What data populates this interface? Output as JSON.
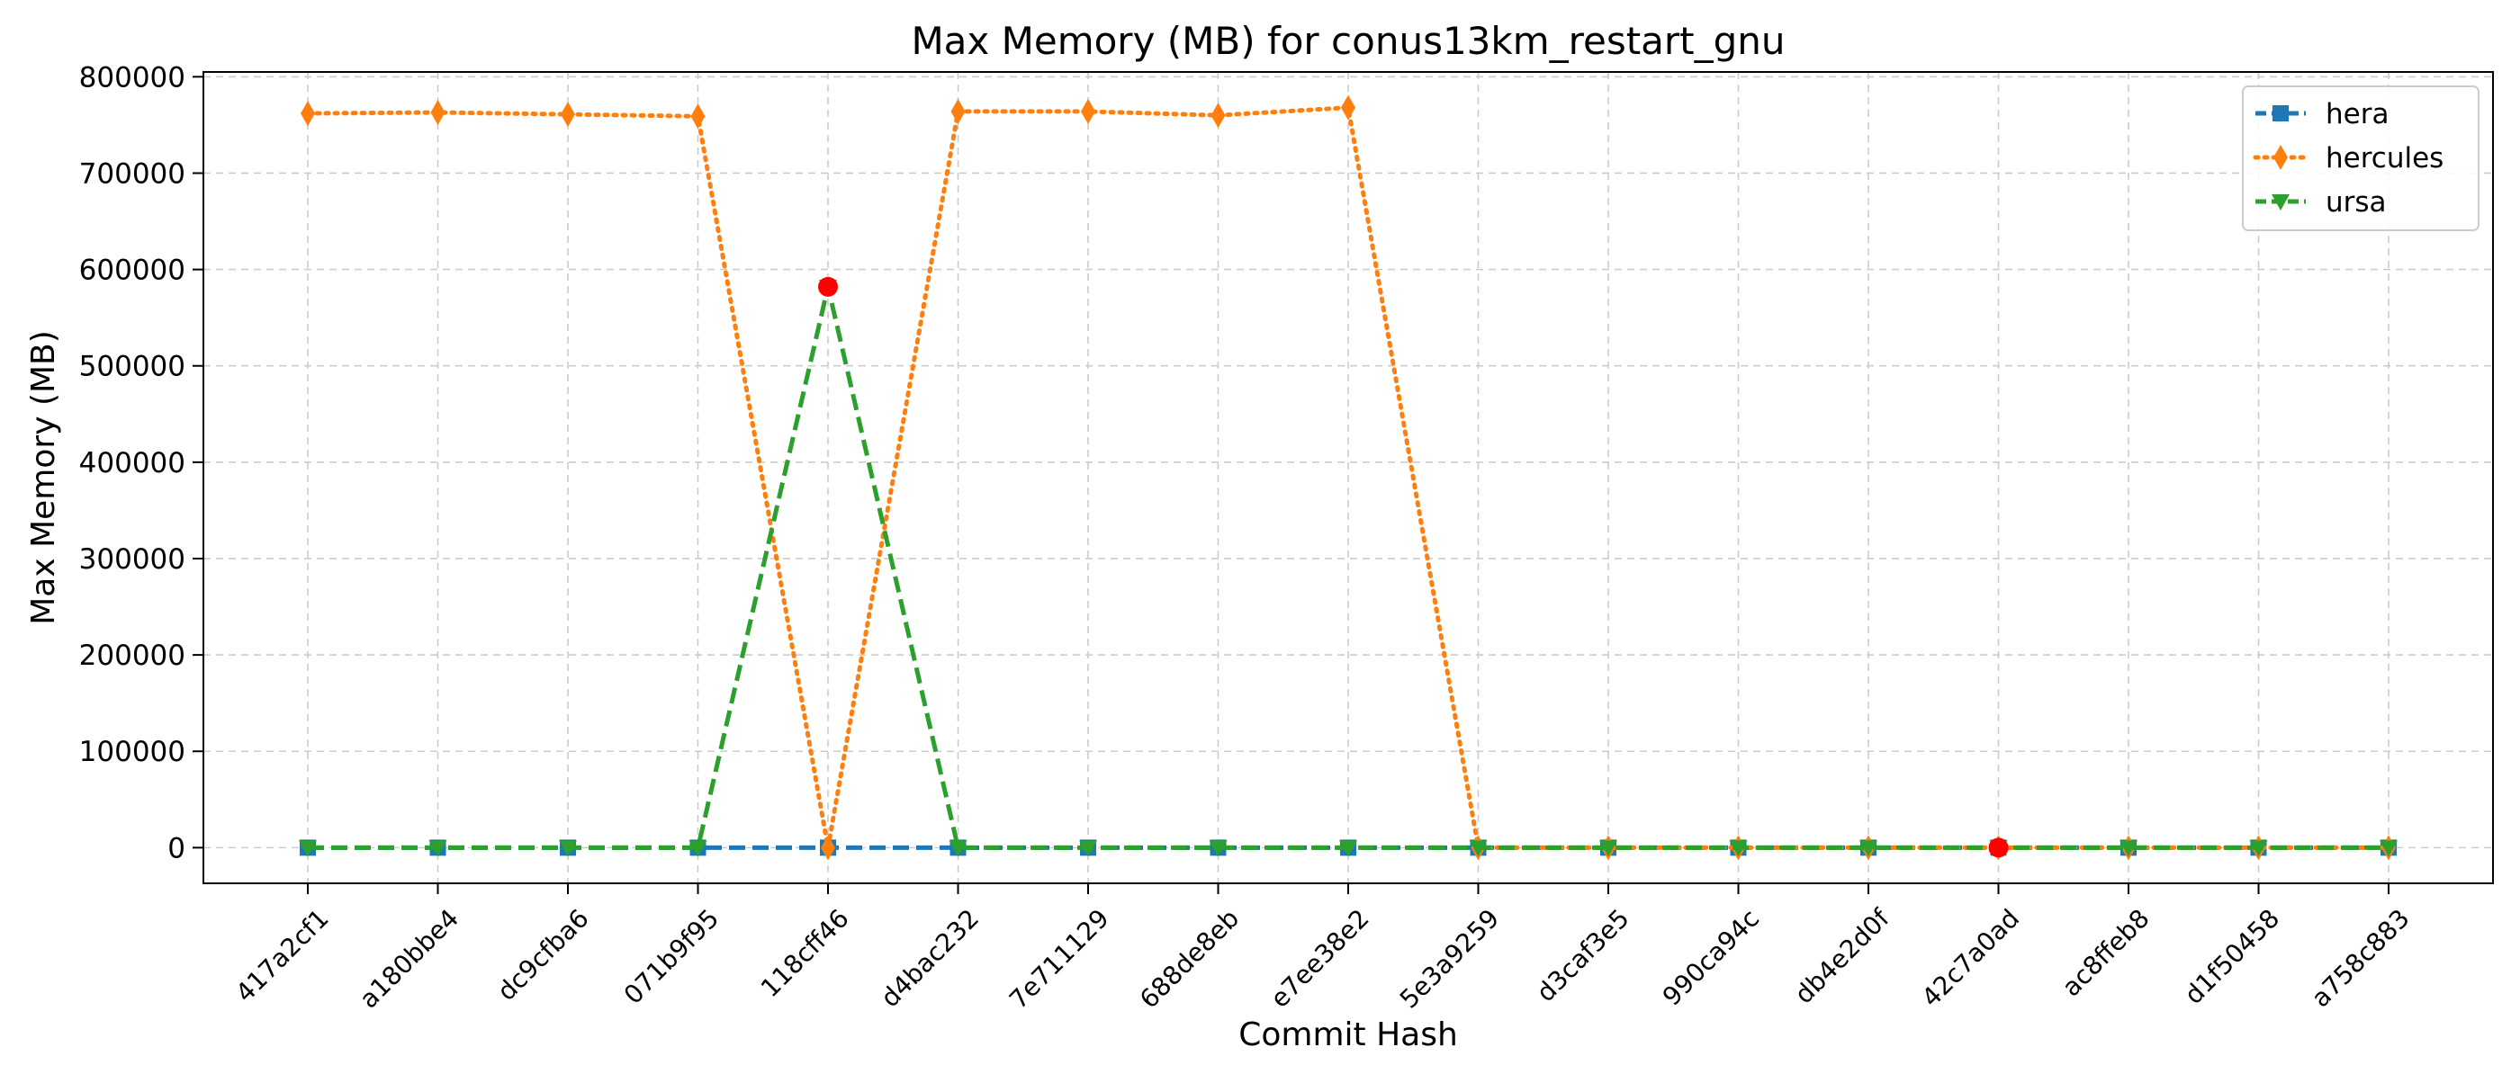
{
  "chart_data": {
    "type": "line",
    "title": "Max Memory (MB) for conus13km_restart_gnu",
    "xlabel": "Commit Hash",
    "ylabel": "Max Memory (MB)",
    "ylim": [
      -37000,
      805000
    ],
    "yticks": [
      0,
      100000,
      200000,
      300000,
      400000,
      500000,
      600000,
      700000,
      800000
    ],
    "grid": true,
    "legend_position": "top-right",
    "categories": [
      "417a2cf1",
      "a180bbe4",
      "dc9cfba6",
      "071b9f95",
      "118cff46",
      "d4bac232",
      "7e711129",
      "688de8eb",
      "e7ee38e2",
      "5e3a9259",
      "d3caf3e5",
      "990ca94c",
      "db4e2d0f",
      "42c7a0ad",
      "ac8ffeb8",
      "d1f50458",
      "a758c883"
    ],
    "series": [
      {
        "name": "hera",
        "color": "#1f77b4",
        "marker": "square",
        "line_style": "dashed",
        "values": [
          0,
          0,
          0,
          0,
          0,
          0,
          0,
          0,
          0,
          0,
          0,
          0,
          0,
          0,
          0,
          0,
          0
        ]
      },
      {
        "name": "hercules",
        "color": "#ff7f0e",
        "marker": "diamond",
        "line_style": "dotted",
        "values": [
          762000,
          763000,
          761000,
          759000,
          0,
          764000,
          764000,
          760000,
          768000,
          0,
          0,
          0,
          0,
          0,
          0,
          0,
          0
        ]
      },
      {
        "name": "ursa",
        "color": "#2ca02c",
        "marker": "triangle-down",
        "line_style": "dashed",
        "values": [
          0,
          0,
          0,
          0,
          582000,
          0,
          0,
          0,
          0,
          0,
          0,
          0,
          0,
          0,
          0,
          0,
          0
        ]
      }
    ],
    "highlight_points": [
      {
        "category": "118cff46",
        "value": 582000,
        "color": "#ff0000"
      },
      {
        "category": "42c7a0ad",
        "value": 0,
        "color": "#ff0000"
      }
    ]
  }
}
